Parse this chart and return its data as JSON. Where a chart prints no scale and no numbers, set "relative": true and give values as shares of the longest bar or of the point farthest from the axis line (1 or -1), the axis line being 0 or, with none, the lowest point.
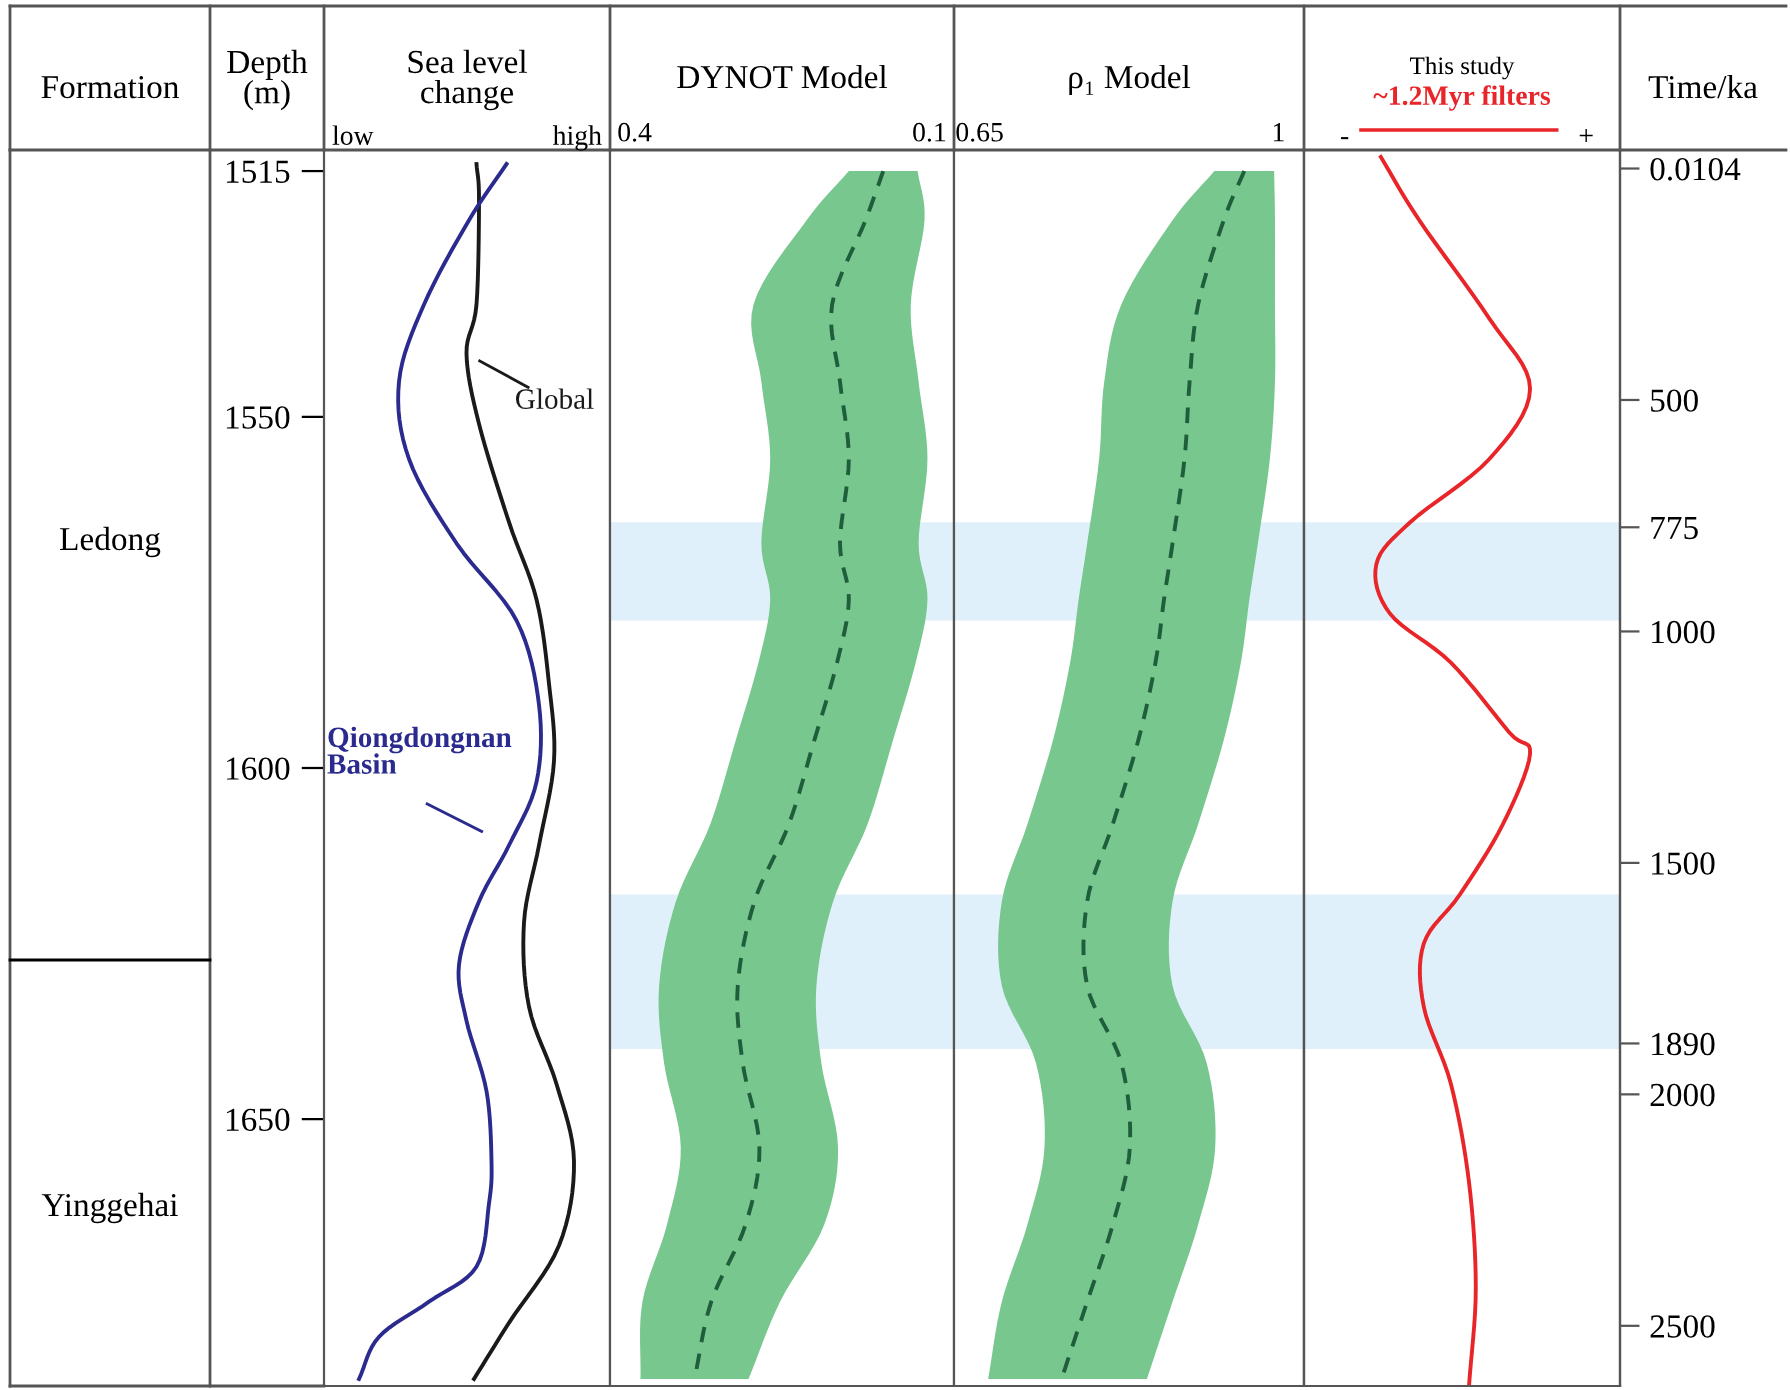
{
  "chart_data": [
    {
      "type": "line",
      "title": "Sea level\nchange",
      "ylabel": "Depth\n(m)",
      "relative": true,
      "orientation": "horizontal",
      "ylim": [
        1688,
        1512
      ],
      "yticks": [
        1515,
        1550,
        1600,
        1650
      ],
      "annotations": [
        "Formation",
        "low",
        "high",
        "Ledong",
        "Yinggehai"
      ],
      "series": [
        {
          "name": "Global",
          "color": "#1a1a1a",
          "x": [
            1514,
            1519,
            1534,
            1541,
            1551,
            1565,
            1576,
            1588,
            1599,
            1611,
            1622,
            1634,
            1645,
            1656,
            1668,
            1679,
            1687
          ],
          "values": [
            0.61,
            0.62,
            0.61,
            0.57,
            0.62,
            0.74,
            0.85,
            0.9,
            0.92,
            0.86,
            0.8,
            0.82,
            0.93,
            1,
            0.94,
            0.74,
            0.6
          ]
        },
        {
          "name": "Qiongdongnan Basin",
          "color": "#2b2b8f",
          "x": [
            1514,
            1522,
            1534,
            1545,
            1556,
            1568,
            1579,
            1591,
            1602,
            1611,
            1619,
            1628,
            1636,
            1646,
            1656,
            1662,
            1671,
            1676,
            1681,
            1687
          ],
          "values": [
            0.73,
            0.58,
            0.4,
            0.3,
            0.34,
            0.53,
            0.77,
            0.86,
            0.85,
            0.74,
            0.62,
            0.54,
            0.57,
            0.65,
            0.67,
            0.66,
            0.61,
            0.42,
            0.22,
            0.14
          ]
        }
      ]
    },
    {
      "type": "line",
      "title": "DYNOT Model",
      "orientation": "horizontal",
      "ylim": [
        1688,
        1512
      ],
      "xlim": [
        0.425,
        0.075
      ],
      "xticks": [
        0.4,
        0.1
      ],
      "tick_labels": "x",
      "x": [
        1515,
        1522,
        1534,
        1545,
        1556,
        1568,
        1576,
        1585,
        1596,
        1608,
        1619,
        1631,
        1642,
        1654,
        1665,
        1676,
        1687
      ],
      "bands": [
        {
          "axis": "y",
          "from": 1565,
          "to": 1579,
          "color": "#dff0fa"
        },
        {
          "axis": "y",
          "from": 1618,
          "to": 1640,
          "color": "#dff0fa"
        }
      ],
      "series": [
        {
          "color": "#1f5e3a",
          "line_style": "dashed",
          "values": [
            0.147,
            0.165,
            0.199,
            0.191,
            0.182,
            0.191,
            0.182,
            0.194,
            0.217,
            0.243,
            0.278,
            0.295,
            0.29,
            0.273,
            0.287,
            0.322,
            0.339
          ],
          "lower": [
            0.112,
            0.105,
            0.119,
            0.111,
            0.102,
            0.111,
            0.102,
            0.114,
            0.137,
            0.163,
            0.198,
            0.215,
            0.21,
            0.193,
            0.207,
            0.252,
            0.284
          ],
          "upper": [
            0.182,
            0.225,
            0.279,
            0.271,
            0.262,
            0.271,
            0.262,
            0.274,
            0.297,
            0.323,
            0.358,
            0.375,
            0.37,
            0.353,
            0.367,
            0.392,
            0.394
          ]
        }
      ]
    },
    {
      "type": "line",
      "title": "ρ₁ Model",
      "orientation": "horizontal",
      "ylim": [
        1688,
        1512
      ],
      "xlim": [
        0.62,
        1.03
      ],
      "xticks": [
        0.65,
        1
      ],
      "tick_labels": "x",
      "x": [
        1515,
        1522,
        1534,
        1545,
        1556,
        1568,
        1576,
        1585,
        1596,
        1608,
        1619,
        1631,
        1642,
        1654,
        1665,
        1676,
        1687
      ],
      "bands": [
        {
          "axis": "y",
          "from": 1565,
          "to": 1579,
          "color": "#dff0fa"
        },
        {
          "axis": "y",
          "from": 1618,
          "to": 1640,
          "color": "#dff0fa"
        }
      ],
      "series": [
        {
          "color": "#1f5e3a",
          "line_style": "dashed",
          "values": [
            0.96,
            0.936,
            0.906,
            0.896,
            0.89,
            0.876,
            0.866,
            0.856,
            0.836,
            0.806,
            0.776,
            0.776,
            0.816,
            0.826,
            0.806,
            0.776,
            0.746
          ],
          "lower": [
            0.925,
            0.876,
            0.816,
            0.796,
            0.79,
            0.776,
            0.766,
            0.756,
            0.736,
            0.706,
            0.676,
            0.676,
            0.716,
            0.726,
            0.706,
            0.676,
            0.66
          ],
          "upper": [
            0.995,
            0.996,
            0.996,
            0.996,
            0.99,
            0.976,
            0.966,
            0.956,
            0.936,
            0.906,
            0.876,
            0.876,
            0.916,
            0.926,
            0.906,
            0.876,
            0.846
          ]
        }
      ]
    },
    {
      "type": "line",
      "title": "This study",
      "subtitle": "~1.2Myr filters",
      "relative": true,
      "orientation": "horizontal",
      "ylim": [
        1688,
        1512
      ],
      "y2label": "Time/ka",
      "y2lim": [
        2630,
        -40
      ],
      "y2ticks": [
        0.0104,
        500,
        775,
        1000,
        1500,
        1890,
        2000,
        2500
      ],
      "annotations": [
        "-",
        "+"
      ],
      "bands": [
        {
          "axis": "y",
          "from": 1565,
          "to": 1579,
          "color": "#dff0fa"
        },
        {
          "axis": "y",
          "from": 1618,
          "to": 1640,
          "color": "#dff0fa"
        }
      ],
      "series": [
        {
          "color": "#e8262a",
          "x": [
            1513,
            1522,
            1536,
            1546,
            1556,
            1565,
            1571,
            1578,
            1585,
            1595,
            1598,
            1608,
            1618,
            1625,
            1634,
            1645,
            1659,
            1674,
            1688
          ],
          "values": [
            0.34,
            0.51,
            0.82,
            1,
            0.82,
            0.47,
            0.32,
            0.38,
            0.65,
            0.91,
            1,
            0.88,
            0.69,
            0.53,
            0.53,
            0.65,
            0.73,
            0.76,
            0.73
          ]
        }
      ]
    }
  ]
}
